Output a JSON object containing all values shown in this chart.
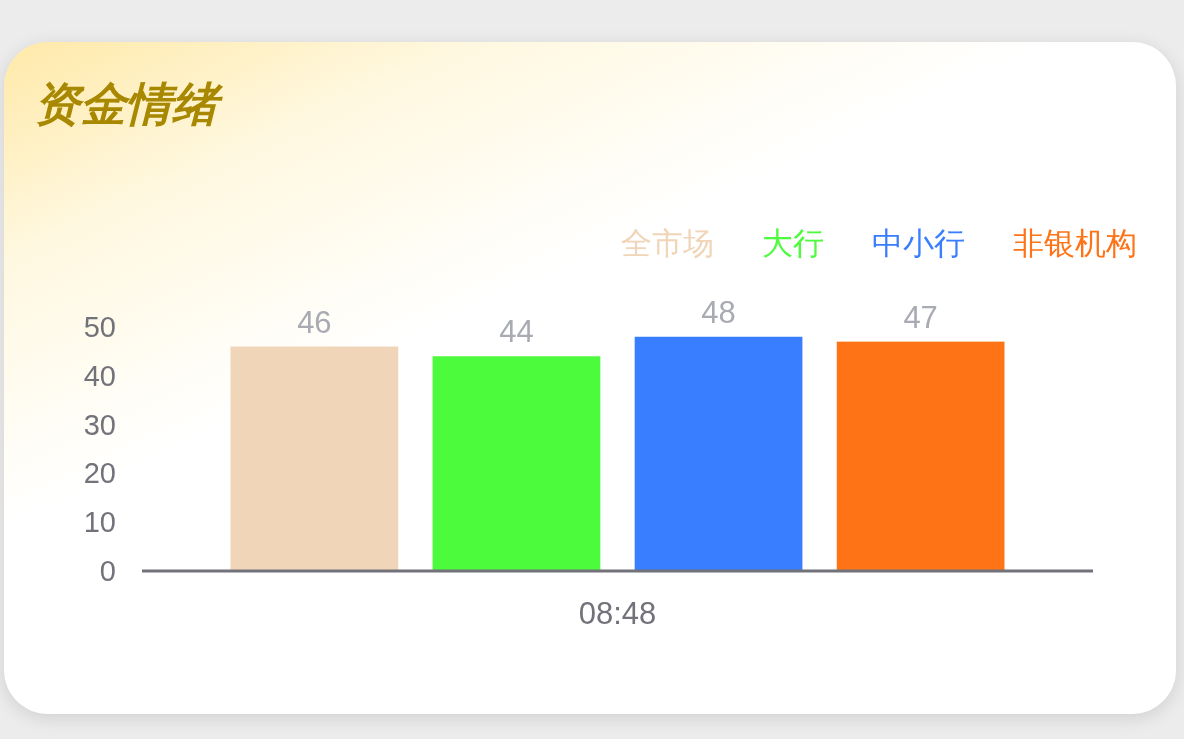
{
  "chart_data": {
    "type": "bar",
    "title": "资金情绪",
    "categories": [
      "08:48"
    ],
    "series": [
      {
        "name": "全市场",
        "color": "#f0d5b8",
        "values": [
          46
        ]
      },
      {
        "name": "大行",
        "color": "#4cfb3b",
        "values": [
          44
        ]
      },
      {
        "name": "中小行",
        "color": "#387efe",
        "values": [
          48
        ]
      },
      {
        "name": "非银机构",
        "color": "#fe7316",
        "values": [
          47
        ]
      }
    ],
    "ylim": [
      0,
      50
    ],
    "yticks": [
      0,
      10,
      20,
      30,
      40,
      50
    ],
    "data_labels": true,
    "legend": "top right",
    "grid": false
  }
}
